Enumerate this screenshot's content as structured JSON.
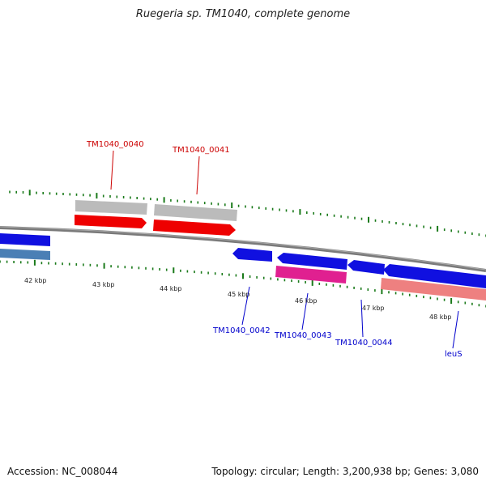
{
  "title": "Ruegeria sp. TM1040, complete genome",
  "footer": {
    "accession": "Accession: NC_008044",
    "summary": "Topology: circular; Length: 3,200,938 bp; Genes: 3,080"
  },
  "colors": {
    "backbone": "#888888",
    "cds_forward": "#ff0000",
    "cds_reverse": "#0000ee",
    "gene_feature": "#bbbbbb",
    "gene_reverse": "#4a7fb5",
    "magenta_feature": "#e02090",
    "pink_feature": "#ee8080",
    "tick": "#1a7a1a",
    "label_forward": "#cc0000",
    "label_reverse": "#0000cc"
  },
  "kbp_labels": [
    "42 kbp",
    "43 kbp",
    "44 kbp",
    "45 kbp",
    "46 kbp",
    "47 kbp",
    "48 kbp"
  ],
  "gene_labels": {
    "forward": [
      "TM1040_0040",
      "TM1040_0041"
    ],
    "reverse": [
      "TM1040_0042",
      "TM1040_0043",
      "TM1040_0044",
      "leuS"
    ]
  }
}
